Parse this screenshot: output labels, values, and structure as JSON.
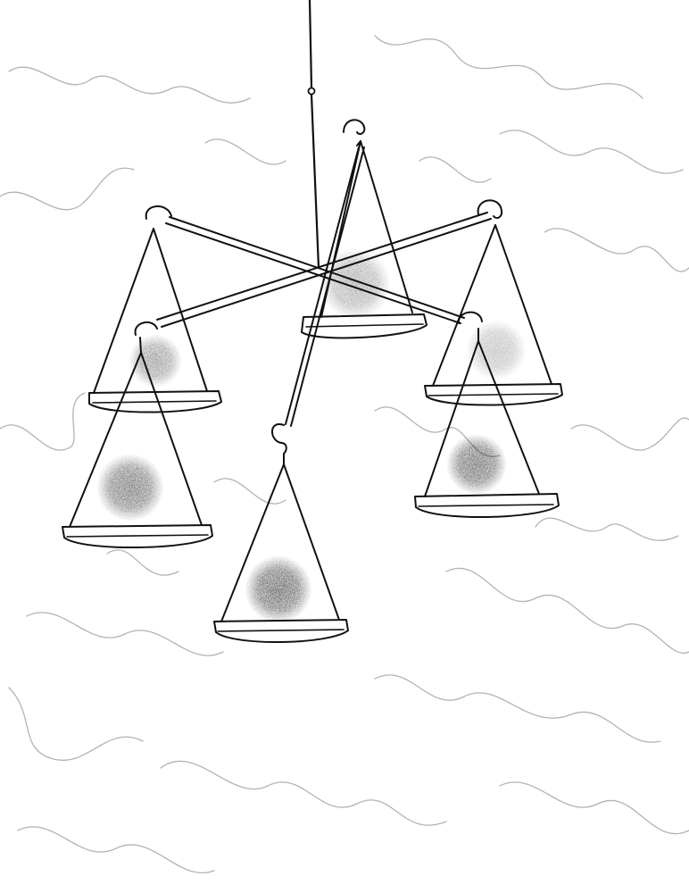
{
  "drawing": {
    "subject": "",
    "colors": {
      "paper": "#ffffff",
      "ink": "#111111",
      "pencil": "#9a9a9a",
      "shading": "#2a2a2a"
    },
    "pans": [
      {
        "id": "top-center",
        "shade": 0.45
      },
      {
        "id": "upper-left",
        "shade": 0.55
      },
      {
        "id": "upper-right",
        "shade": 0.35
      },
      {
        "id": "lower-left",
        "shade": 0.75
      },
      {
        "id": "lower-center",
        "shade": 0.85
      },
      {
        "id": "lower-right",
        "shade": 0.8
      }
    ]
  }
}
